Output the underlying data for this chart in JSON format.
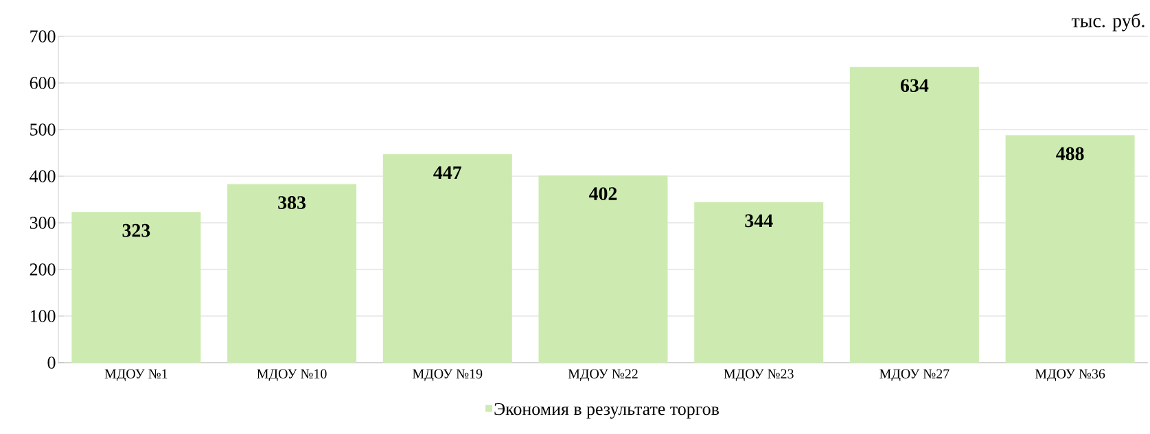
{
  "chart_data": {
    "type": "bar",
    "ylabel": "тыс. руб.",
    "categories": [
      "МДОУ №1",
      "МДОУ №10",
      "МДОУ №19",
      "МДОУ №22",
      "МДОУ №23",
      "МДОУ №27",
      "МДОУ №36"
    ],
    "series": [
      {
        "name": "Экономия в результате торгов",
        "color": "#cdebb0",
        "values": [
          323,
          383,
          447,
          402,
          344,
          634,
          488
        ]
      }
    ],
    "ylim": [
      0,
      700
    ],
    "yticks": [
      0,
      100,
      200,
      300,
      400,
      500,
      600,
      700
    ],
    "grid": "y",
    "legend": "bottom",
    "data_labels": true
  }
}
